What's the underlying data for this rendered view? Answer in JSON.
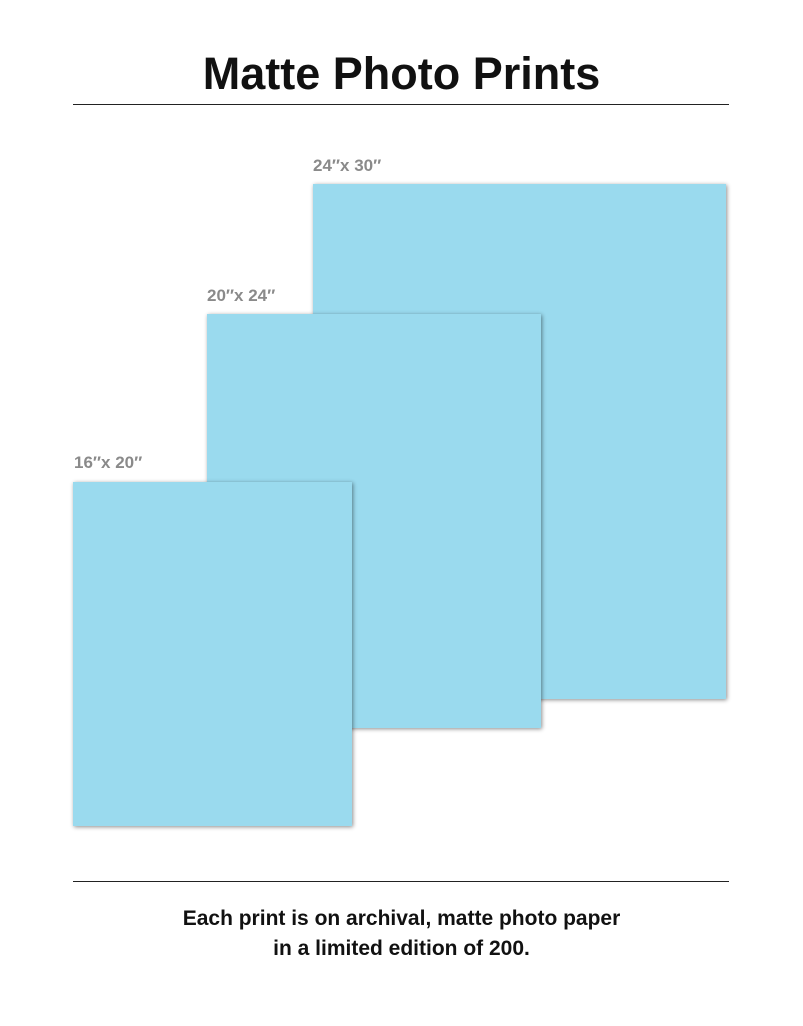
{
  "title": "Matte Photo Prints",
  "prints": [
    {
      "size_label": "24″x 30″"
    },
    {
      "size_label": "20″x 24″"
    },
    {
      "size_label": "16″x 20″"
    }
  ],
  "footer": {
    "line1": "Each print is on archival, matte photo paper",
    "line2": "in a limited edition of 200."
  },
  "colors": {
    "print_fill": "#9adaee",
    "label": "#8a8a8a"
  }
}
